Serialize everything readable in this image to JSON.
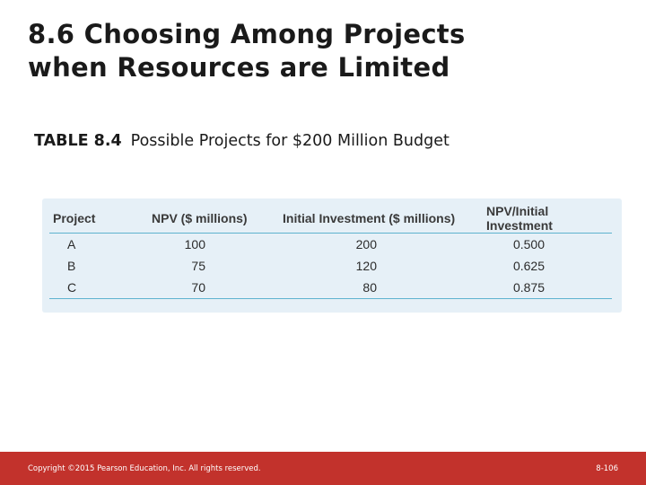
{
  "slide": {
    "title_line1": "8.6 Choosing Among Projects",
    "title_line2": "when Resources are Limited"
  },
  "caption": {
    "number": "TABLE 8.4",
    "text": "Possible Projects for $200 Million Budget"
  },
  "table": {
    "headers": [
      "Project",
      "NPV ($ millions)",
      "Initial Investment ($ millions)",
      "NPV/Initial Investment"
    ],
    "rows": [
      [
        "A",
        "100",
        "200",
        "0.500"
      ],
      [
        "B",
        "75",
        "120",
        "0.625"
      ],
      [
        "C",
        "70",
        "80",
        "0.875"
      ]
    ]
  },
  "footer": {
    "copyright": "Copyright ©2015 Pearson Education, Inc. All rights reserved.",
    "page": "8-106"
  },
  "colors": {
    "footer_bar": "#c2322c",
    "table_panel": "#e6f0f7",
    "rule_line": "#5eb3cf"
  }
}
